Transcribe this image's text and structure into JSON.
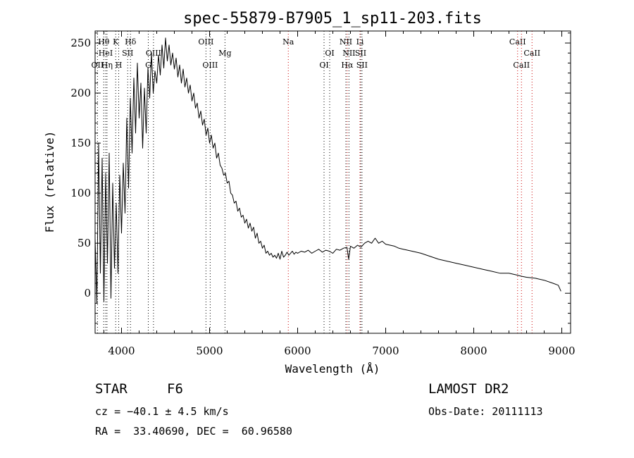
{
  "chart_data": {
    "type": "line",
    "title": "spec-55879-B7905_1_sp11-203.fits",
    "xlabel": "Wavelength (Å)",
    "ylabel": "Flux (relative)",
    "xlim": [
      3700,
      9100
    ],
    "ylim": [
      -40,
      262
    ],
    "xticks": [
      4000,
      5000,
      6000,
      7000,
      8000,
      9000
    ],
    "yticks": [
      0,
      50,
      100,
      150,
      200,
      250
    ],
    "grid": false,
    "series": [
      {
        "x": [
          3700,
          3720,
          3740,
          3760,
          3780,
          3800,
          3820,
          3840,
          3860,
          3880,
          3900,
          3920,
          3940,
          3960,
          3980,
          4000,
          4020,
          4040,
          4060,
          4080,
          4100,
          4120,
          4140,
          4160,
          4180,
          4200,
          4220,
          4240,
          4260,
          4280,
          4300,
          4320,
          4340,
          4360,
          4380,
          4400,
          4420,
          4440,
          4460,
          4480,
          4500,
          4520,
          4540,
          4560,
          4580,
          4600,
          4620,
          4640,
          4660,
          4680,
          4700,
          4720,
          4740,
          4760,
          4780,
          4800,
          4820,
          4840,
          4860,
          4880,
          4900,
          4920,
          4940,
          4960,
          4980,
          5000,
          5020,
          5040,
          5060,
          5080,
          5100,
          5120,
          5140,
          5160,
          5180,
          5200,
          5220,
          5240,
          5260,
          5280,
          5300,
          5320,
          5340,
          5360,
          5380,
          5400,
          5420,
          5440,
          5460,
          5480,
          5500,
          5520,
          5540,
          5560,
          5580,
          5600,
          5620,
          5640,
          5660,
          5680,
          5700,
          5720,
          5740,
          5760,
          5780,
          5800,
          5820,
          5840,
          5860,
          5880,
          5900,
          5920,
          5940,
          5960,
          5980,
          6000,
          6040,
          6080,
          6120,
          6160,
          6200,
          6240,
          6280,
          6320,
          6360,
          6400,
          6440,
          6480,
          6520,
          6560,
          6580,
          6600,
          6640,
          6680,
          6720,
          6760,
          6800,
          6840,
          6880,
          6920,
          6960,
          7000,
          7050,
          7100,
          7150,
          7200,
          7300,
          7400,
          7500,
          7600,
          7700,
          7800,
          7900,
          8000,
          8100,
          8200,
          8300,
          8400,
          8500,
          8540,
          8600,
          8700,
          8800,
          8900,
          8960,
          8990
        ],
        "y": [
          55,
          -10,
          150,
          20,
          135,
          -8,
          120,
          30,
          140,
          -5,
          110,
          25,
          90,
          20,
          118,
          60,
          130,
          80,
          175,
          105,
          195,
          140,
          215,
          160,
          230,
          175,
          210,
          145,
          205,
          160,
          225,
          195,
          240,
          200,
          222,
          210,
          238,
          218,
          248,
          225,
          255,
          232,
          248,
          228,
          240,
          224,
          235,
          216,
          228,
          210,
          224,
          206,
          215,
          200,
          208,
          192,
          200,
          185,
          190,
          175,
          182,
          168,
          174,
          158,
          165,
          150,
          158,
          145,
          150,
          135,
          140,
          128,
          125,
          118,
          120,
          110,
          112,
          100,
          98,
          90,
          92,
          82,
          85,
          76,
          78,
          70,
          74,
          65,
          70,
          62,
          66,
          55,
          60,
          50,
          52,
          45,
          48,
          40,
          42,
          38,
          40,
          36,
          38,
          35,
          40,
          34,
          42,
          36,
          38,
          41,
          38,
          40,
          42,
          39,
          41,
          40,
          42,
          41,
          43,
          40,
          42,
          44,
          41,
          43,
          42,
          40,
          44,
          43,
          45,
          46,
          34,
          47,
          45,
          48,
          46,
          50,
          52,
          50,
          55,
          50,
          52,
          49,
          48,
          47,
          45,
          44,
          42,
          40,
          37,
          34,
          32,
          30,
          28,
          26,
          24,
          22,
          20,
          20,
          18,
          17,
          16,
          15,
          13,
          10,
          8,
          2
        ]
      }
    ],
    "lines": [
      {
        "name": "OII",
        "wl": 3727,
        "row": 2,
        "color": "black"
      },
      {
        "name": "Hθ",
        "wl": 3798,
        "row": 0,
        "color": "black"
      },
      {
        "name": "HeI",
        "wl": 3820,
        "row": 1,
        "color": "black"
      },
      {
        "name": "Hη",
        "wl": 3835,
        "row": 2,
        "color": "black"
      },
      {
        "name": "K",
        "wl": 3934,
        "row": 0,
        "color": "black"
      },
      {
        "name": "H",
        "wl": 3968,
        "row": 2,
        "color": "black"
      },
      {
        "name": "SII",
        "wl": 4070,
        "row": 1,
        "color": "black"
      },
      {
        "name": "Hδ",
        "wl": 4102,
        "row": 0,
        "color": "black"
      },
      {
        "name": "G",
        "wl": 4304,
        "row": 2,
        "color": "black"
      },
      {
        "name": "OIII",
        "wl": 4363,
        "row": 1,
        "color": "black"
      },
      {
        "name": "OIII",
        "wl": 4959,
        "row": 0,
        "color": "black"
      },
      {
        "name": "OIII",
        "wl": 5007,
        "row": 2,
        "color": "black"
      },
      {
        "name": "Mg",
        "wl": 5175,
        "row": 1,
        "color": "black"
      },
      {
        "name": "Na",
        "wl": 5894,
        "row": 0,
        "color": "red"
      },
      {
        "name": "OI",
        "wl": 6300,
        "row": 2,
        "color": "black"
      },
      {
        "name": "OI",
        "wl": 6364,
        "row": 1,
        "color": "black"
      },
      {
        "name": "NII",
        "wl": 6548,
        "row": 0,
        "color": "black"
      },
      {
        "name": "Hα",
        "wl": 6563,
        "row": 2,
        "color": "red"
      },
      {
        "name": "NII",
        "wl": 6583,
        "row": 1,
        "color": "black"
      },
      {
        "name": "Li",
        "wl": 6708,
        "row": 0,
        "color": "red"
      },
      {
        "name": "SII",
        "wl": 6716,
        "row": 1,
        "color": "black"
      },
      {
        "name": "SII",
        "wl": 6731,
        "row": 2,
        "color": "black"
      },
      {
        "name": "CaII",
        "wl": 8498,
        "row": 0,
        "color": "red"
      },
      {
        "name": "CaII",
        "wl": 8542,
        "row": 2,
        "color": "red"
      },
      {
        "name": "CaII",
        "wl": 8662,
        "row": 1,
        "color": "red"
      }
    ]
  },
  "info": {
    "class": "STAR",
    "subclass": "F6",
    "survey": "LAMOST DR2",
    "cz": "cz = −40.1 ± 4.5 km/s",
    "obsdate": "Obs-Date: 20111113",
    "radec": "RA =  33.40690, DEC =  60.96580"
  }
}
